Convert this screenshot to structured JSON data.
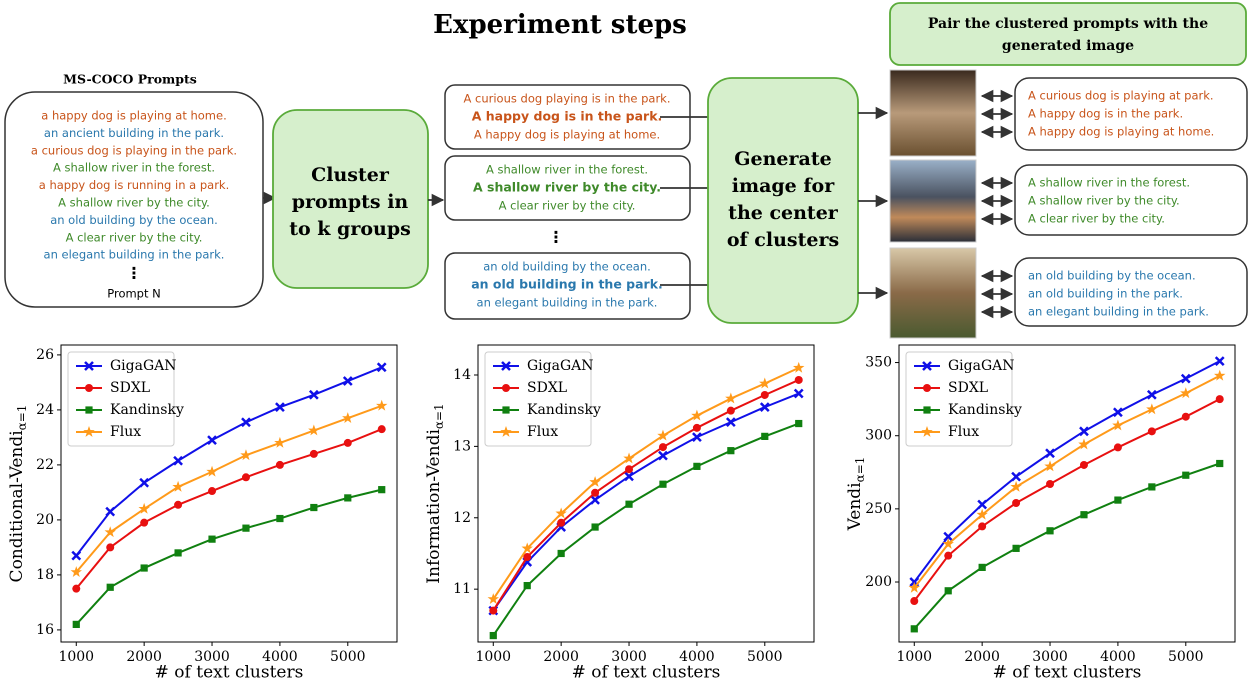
{
  "diagram": {
    "title": "Experiment steps",
    "source_label": "MS-COCO Prompts",
    "prompts": [
      {
        "text": "a happy dog is playing at home.",
        "color": "#c8541a"
      },
      {
        "text": "an ancient building in the park.",
        "color": "#2a78ad"
      },
      {
        "text": "a curious dog is playing in the park.",
        "color": "#c8541a"
      },
      {
        "text": "A shallow river in the forest.",
        "color": "#3f8a2a"
      },
      {
        "text": "a happy dog is running in a park.",
        "color": "#c8541a"
      },
      {
        "text": "A shallow river by the city.",
        "color": "#3f8a2a"
      },
      {
        "text": "an old building by the ocean.",
        "color": "#2a78ad"
      },
      {
        "text": "A clear river by the city.",
        "color": "#3f8a2a"
      },
      {
        "text": "an elegant building in the park.",
        "color": "#2a78ad"
      }
    ],
    "ellipsis": "⋮",
    "last_prompt": "Prompt N",
    "cluster_step": [
      "Cluster",
      "prompts in",
      "to k groups"
    ],
    "clusters": [
      {
        "color": "#c8541a",
        "prompts": [
          "A curious dog playing is in the park.",
          "A happy dog is in the park.",
          "A happy dog is playing at home."
        ]
      },
      {
        "color": "#3f8a2a",
        "prompts": [
          "A shallow river in the forest.",
          "A shallow river by the city.",
          "A clear river by the city."
        ]
      },
      {
        "color": "#2a78ad",
        "prompts": [
          "an old building by the ocean.",
          "an old building in the park.",
          "an elegant building in the park."
        ]
      }
    ],
    "generate_step": [
      "Generate",
      "image for",
      "the center",
      "of clusters"
    ],
    "pair_step": [
      "Pair the clustered prompts with the",
      "generated image"
    ],
    "pairs": [
      {
        "color": "#c8541a",
        "prompts": [
          "A curious dog is playing at park.",
          "A happy dog is in the park.",
          "A happy dog is playing at home."
        ]
      },
      {
        "color": "#3f8a2a",
        "prompts": [
          "A shallow river in the forest.",
          "A shallow river by the city.",
          "A clear river by the city."
        ]
      },
      {
        "color": "#2a78ad",
        "prompts": [
          "an old building by the ocean.",
          "an old building in the park.",
          "an elegant building in the park."
        ]
      }
    ]
  },
  "chart_data": [
    {
      "type": "line",
      "ylabel": "Conditional-Vendi",
      "ylabel_subscript": "α=1",
      "xlabel": "# of text clusters",
      "x": [
        1000,
        1500,
        2000,
        2500,
        3000,
        3500,
        4000,
        4500,
        5000,
        5500
      ],
      "xlim": [
        775,
        5725
      ],
      "xticks": [
        1000,
        2000,
        3000,
        4000,
        5000
      ],
      "ylim": [
        15.56,
        26.36
      ],
      "yticks": [
        16,
        18,
        20,
        22,
        24,
        26
      ],
      "legend": "upper left",
      "series": [
        {
          "name": "GigaGAN",
          "color": "#1010e8",
          "marker": "x",
          "values": [
            18.7,
            20.3,
            21.35,
            22.15,
            22.9,
            23.55,
            24.1,
            24.55,
            25.05,
            25.55
          ]
        },
        {
          "name": "SDXL",
          "color": "#e81010",
          "marker": "o",
          "values": [
            17.5,
            19.0,
            19.9,
            20.55,
            21.05,
            21.55,
            22.0,
            22.4,
            22.8,
            23.3
          ]
        },
        {
          "name": "Kandinsky",
          "color": "#108010",
          "marker": "s",
          "values": [
            16.2,
            17.55,
            18.25,
            18.8,
            19.3,
            19.7,
            20.05,
            20.45,
            20.8,
            21.1
          ]
        },
        {
          "name": "Flux",
          "color": "#ff9a1a",
          "marker": "*",
          "values": [
            18.1,
            19.55,
            20.4,
            21.2,
            21.75,
            22.35,
            22.8,
            23.25,
            23.7,
            24.15
          ]
        }
      ]
    },
    {
      "type": "line",
      "ylabel": "Information-Vendi",
      "ylabel_subscript": "α=1",
      "xlabel": "# of text clusters",
      "x": [
        1000,
        1500,
        2000,
        2500,
        3000,
        3500,
        4000,
        4500,
        5000,
        5500
      ],
      "xlim": [
        775,
        5725
      ],
      "xticks": [
        1000,
        2000,
        3000,
        4000,
        5000
      ],
      "ylim": [
        10.26,
        14.42
      ],
      "yticks": [
        11,
        12,
        13,
        14
      ],
      "legend": "upper left",
      "series": [
        {
          "name": "GigaGAN",
          "color": "#1010e8",
          "marker": "x",
          "values": [
            10.7,
            11.38,
            11.87,
            12.25,
            12.58,
            12.87,
            13.13,
            13.34,
            13.55,
            13.74
          ]
        },
        {
          "name": "SDXL",
          "color": "#e81010",
          "marker": "o",
          "values": [
            10.7,
            11.45,
            11.93,
            12.35,
            12.68,
            12.99,
            13.26,
            13.5,
            13.72,
            13.93
          ]
        },
        {
          "name": "Kandinsky",
          "color": "#108010",
          "marker": "s",
          "values": [
            10.35,
            11.05,
            11.5,
            11.87,
            12.19,
            12.47,
            12.72,
            12.94,
            13.14,
            13.32
          ]
        },
        {
          "name": "Flux",
          "color": "#ff9a1a",
          "marker": "*",
          "values": [
            10.86,
            11.57,
            12.06,
            12.5,
            12.83,
            13.15,
            13.43,
            13.67,
            13.88,
            14.1
          ]
        }
      ]
    },
    {
      "type": "line",
      "ylabel": "Vendi",
      "ylabel_subscript": "α=1",
      "xlabel": "# of text clusters",
      "x": [
        1000,
        1500,
        2000,
        2500,
        3000,
        3500,
        4000,
        4500,
        5000,
        5500
      ],
      "xlim": [
        775,
        5725
      ],
      "xticks": [
        1000,
        2000,
        3000,
        4000,
        5000
      ],
      "ylim": [
        159,
        362
      ],
      "yticks": [
        200,
        250,
        300,
        350
      ],
      "legend": "upper left",
      "series": [
        {
          "name": "GigaGAN",
          "color": "#1010e8",
          "marker": "x",
          "values": [
            200,
            231,
            253,
            272,
            288,
            303,
            316,
            328,
            339,
            351
          ]
        },
        {
          "name": "SDXL",
          "color": "#e81010",
          "marker": "o",
          "values": [
            187,
            218,
            238,
            254,
            267,
            280,
            292,
            303,
            313,
            325
          ]
        },
        {
          "name": "Kandinsky",
          "color": "#108010",
          "marker": "s",
          "values": [
            168,
            194,
            210,
            223,
            235,
            246,
            256,
            265,
            273,
            281
          ]
        },
        {
          "name": "Flux",
          "color": "#ff9a1a",
          "marker": "*",
          "values": [
            196,
            226,
            246,
            265,
            279,
            294,
            307,
            318,
            329,
            341
          ]
        }
      ]
    }
  ]
}
